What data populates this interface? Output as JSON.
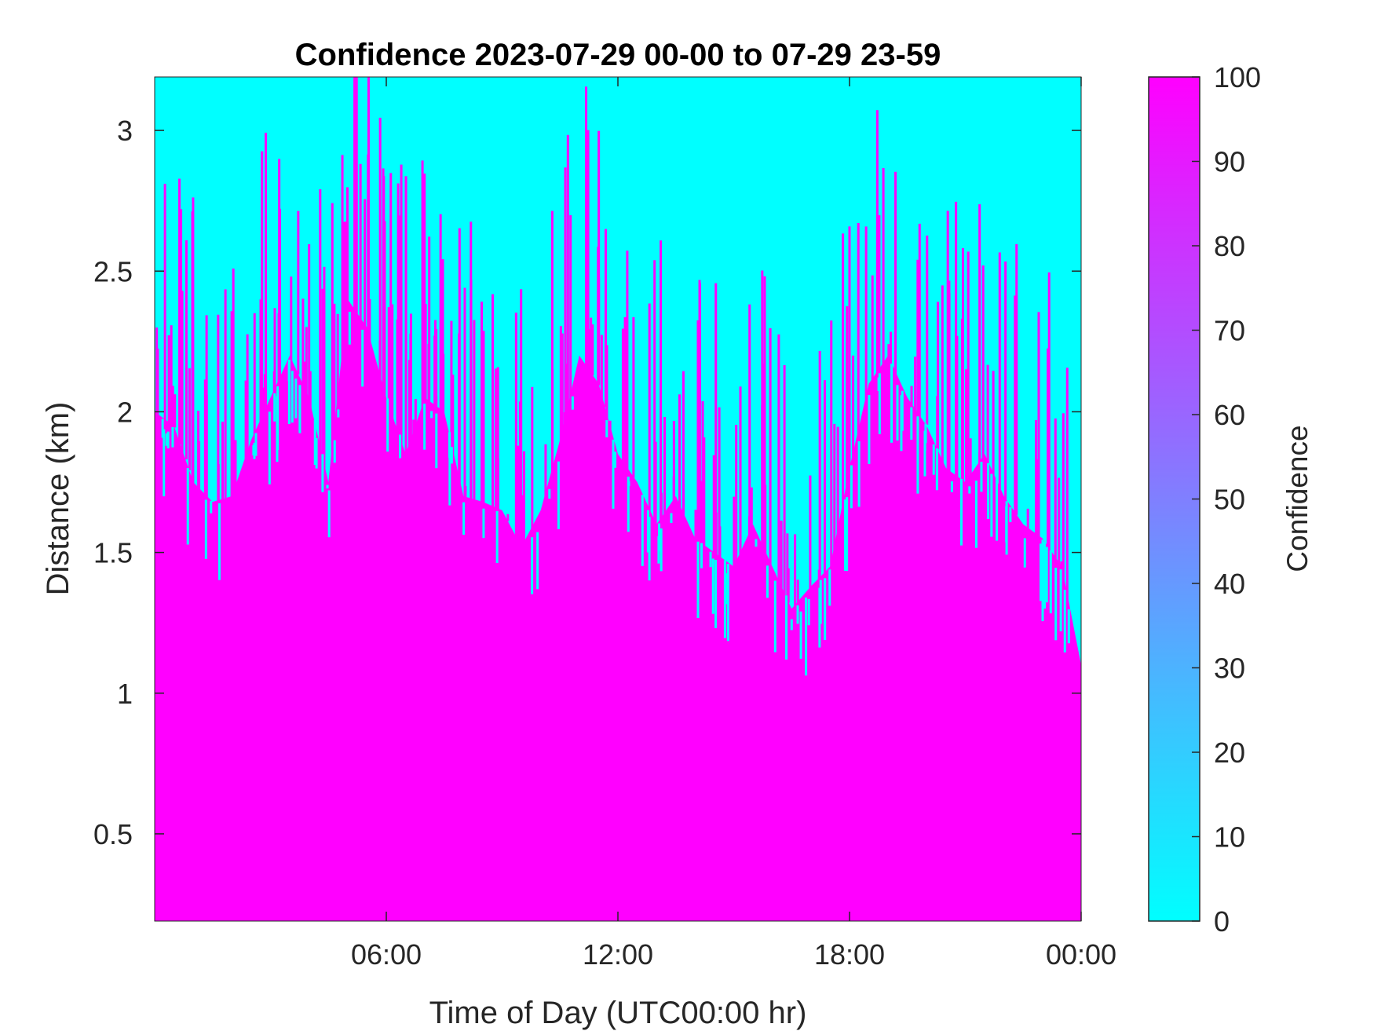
{
  "chart_data": {
    "type": "heatmap",
    "title": "Confidence 2023-07-29 00-00 to 07-29 23-59",
    "xlabel": "Time of Day (UTC00:00 hr)",
    "ylabel": "Distance (km)",
    "xlim_hours": [
      0,
      24
    ],
    "ylim": [
      0.19,
      3.19
    ],
    "x_ticks": [
      {
        "value": 6,
        "label": "06:00"
      },
      {
        "value": 12,
        "label": "12:00"
      },
      {
        "value": 18,
        "label": "18:00"
      },
      {
        "value": 24,
        "label": "00:00"
      }
    ],
    "y_ticks": [
      {
        "value": 0.5,
        "label": "0.5"
      },
      {
        "value": 1,
        "label": "1"
      },
      {
        "value": 1.5,
        "label": "1.5"
      },
      {
        "value": 2,
        "label": "2"
      },
      {
        "value": 2.5,
        "label": "2.5"
      },
      {
        "value": 3,
        "label": "3"
      }
    ],
    "colorbar": {
      "label": "Confidence",
      "min": 0,
      "max": 100,
      "low_color": "#00FFFF",
      "high_color": "#FF00FF",
      "ticks": [
        0,
        10,
        20,
        30,
        40,
        50,
        60,
        70,
        80,
        90,
        100
      ]
    },
    "grid": false,
    "description_values": "Confidence is ~100 (magenta) below a fluctuating boundary and ~0 (cyan) above it",
    "boundary_hours": [
      0,
      0.5,
      1,
      1.5,
      2,
      2.5,
      3,
      3.5,
      4,
      4.5,
      5,
      5.5,
      6,
      6.5,
      7,
      7.5,
      8,
      8.5,
      9,
      9.5,
      10,
      10.5,
      11,
      11.5,
      12,
      12.5,
      13,
      13.5,
      14,
      14.5,
      15,
      15.5,
      16,
      16.5,
      17,
      17.5,
      18,
      18.5,
      19,
      19.5,
      20,
      20.5,
      21,
      21.5,
      22,
      22.5,
      23,
      23.5,
      24
    ],
    "boundary_km": [
      2.0,
      1.95,
      1.75,
      1.68,
      1.7,
      1.9,
      2.05,
      2.2,
      2.05,
      1.75,
      2.4,
      2.3,
      2.05,
      1.85,
      2.05,
      2.0,
      1.7,
      1.68,
      1.65,
      1.52,
      1.65,
      1.9,
      2.2,
      2.1,
      1.85,
      1.75,
      1.6,
      1.7,
      1.55,
      1.5,
      1.45,
      1.6,
      1.45,
      1.3,
      1.38,
      1.45,
      1.8,
      2.1,
      2.2,
      2.05,
      1.95,
      1.8,
      1.75,
      1.85,
      1.7,
      1.6,
      1.55,
      1.45,
      1.1
    ]
  }
}
